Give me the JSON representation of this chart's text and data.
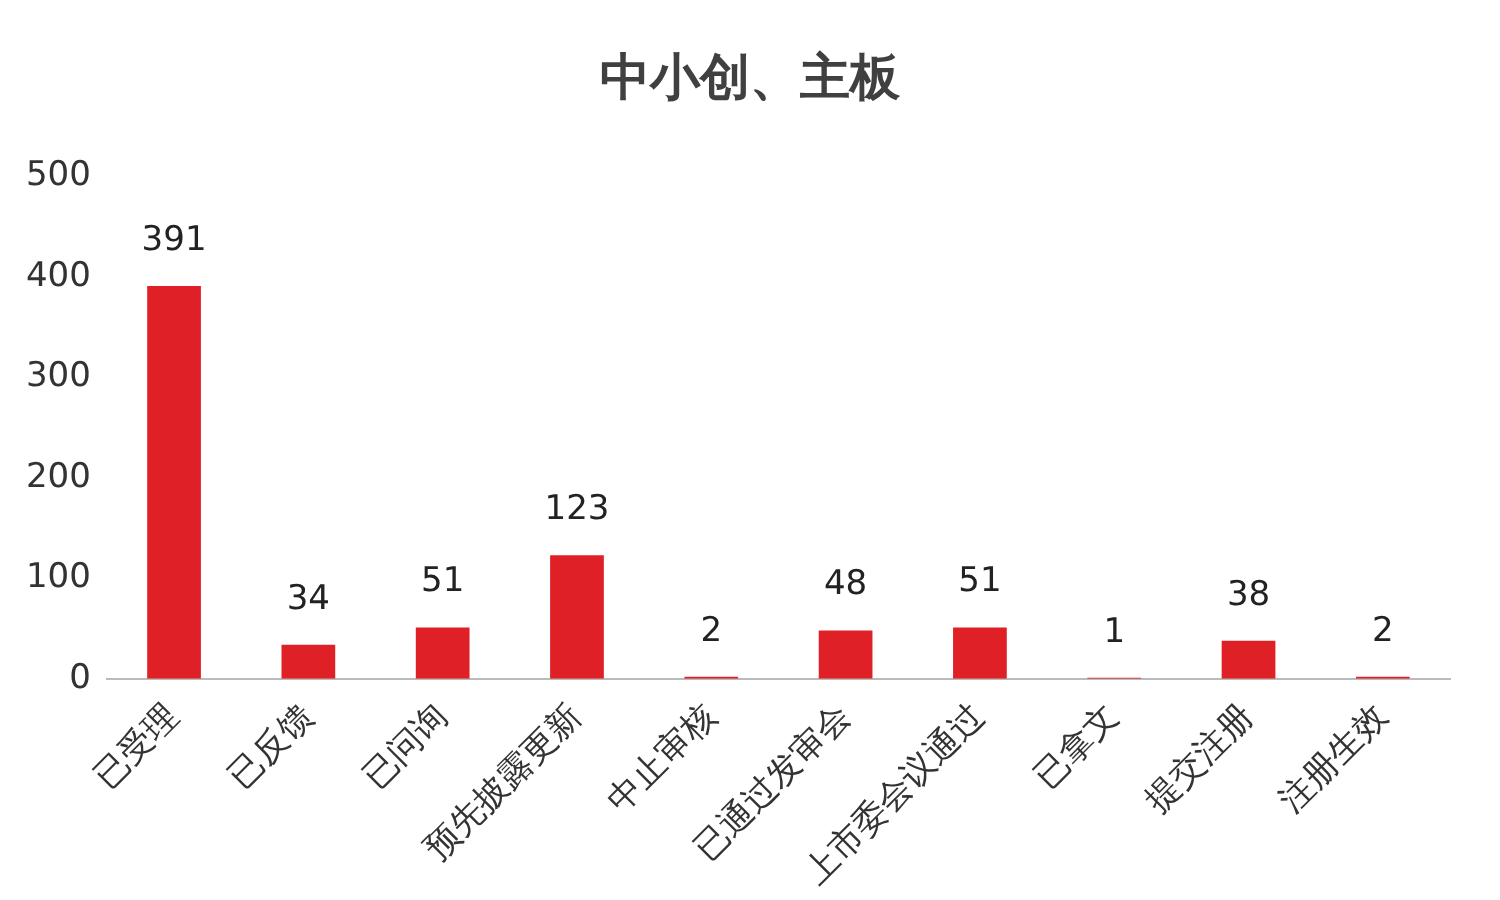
{
  "chart_data": {
    "type": "bar",
    "title": "中小创、主板",
    "categories": [
      "已受理",
      "已反馈",
      "已问询",
      "预先披露更新",
      "中止审核",
      "已通过发审会",
      "上市委会议通过",
      "已拿文",
      "提交注册",
      "注册生效"
    ],
    "values": [
      391,
      34,
      51,
      123,
      2,
      48,
      51,
      1,
      38,
      2
    ],
    "color": "#e02027",
    "ylim": [
      0,
      500
    ],
    "yticks": [
      0,
      100,
      200,
      300,
      400,
      500
    ],
    "grid": false,
    "legend": false,
    "data_labels": true
  }
}
